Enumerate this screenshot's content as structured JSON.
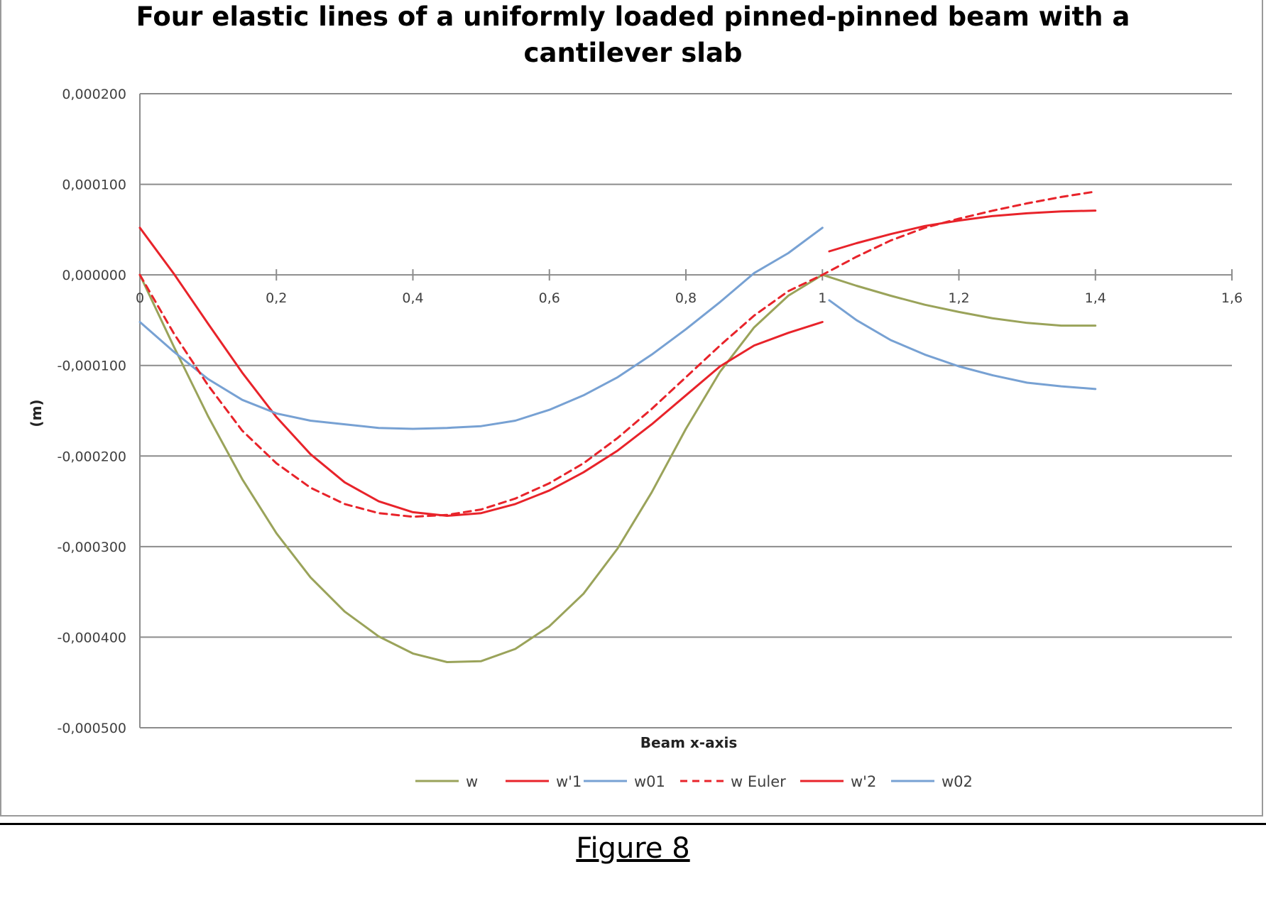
{
  "chart_data": {
    "type": "line",
    "title_lines": [
      "Four elastic lines of a uniformly loaded pinned-pinned beam with a",
      "cantilever slab"
    ],
    "xlabel": "Beam x-axis",
    "ylabel": "(m)",
    "xlim": [
      0,
      1.6
    ],
    "ylim": [
      -0.0005,
      0.0002
    ],
    "x_ticks": [
      0,
      0.2,
      0.4,
      0.6,
      0.8,
      1,
      1.2,
      1.4,
      1.6
    ],
    "x_tick_labels": [
      "0",
      "0,2",
      "0,4",
      "0,6",
      "0,8",
      "1",
      "1,2",
      "1,4",
      "1,6"
    ],
    "y_ticks": [
      0.0002,
      0.0001,
      0,
      -0.0001,
      -0.0002,
      -0.0003,
      -0.0004,
      -0.0005
    ],
    "y_tick_labels": [
      "0,000200",
      "0,000100",
      "0,000000",
      "-0,000100",
      "-0,000200",
      "-0,000300",
      "-0,000400",
      "-0,000500"
    ],
    "grid": true,
    "legend_position": "bottom",
    "series": [
      {
        "name": "w",
        "color": "#9aa35a",
        "dash": false,
        "points": [
          [
            0,
            0
          ],
          [
            0.05,
            -7.97e-05
          ],
          [
            0.1,
            -0.0001562
          ],
          [
            0.15,
            -0.0002256
          ],
          [
            0.2,
            -0.0002853
          ],
          [
            0.25,
            -0.000334
          ],
          [
            0.3,
            -0.0003717
          ],
          [
            0.35,
            -0.0003992
          ],
          [
            0.4,
            -0.000418
          ],
          [
            0.45,
            -0.0004275
          ],
          [
            0.5,
            -0.0004265
          ],
          [
            0.55,
            -0.000413
          ],
          [
            0.6,
            -0.000388
          ],
          [
            0.65,
            -0.000352
          ],
          [
            0.7,
            -0.000302
          ],
          [
            0.75,
            -0.00024
          ],
          [
            0.8,
            -0.00017
          ],
          [
            0.85,
            -0.000107
          ],
          [
            0.9,
            -5.8e-05
          ],
          [
            0.95,
            -2.3e-05
          ],
          [
            1.0,
            0
          ]
        ]
      },
      {
        "name": "w",
        "color": "#9aa35a",
        "dash": false,
        "points": [
          [
            1.0,
            0
          ],
          [
            1.05,
            -1.2e-05
          ],
          [
            1.1,
            -2.3e-05
          ],
          [
            1.15,
            -3.3e-05
          ],
          [
            1.2,
            -4.1e-05
          ],
          [
            1.25,
            -4.8e-05
          ],
          [
            1.3,
            -5.3e-05
          ],
          [
            1.35,
            -5.6e-05
          ],
          [
            1.4,
            -5.6e-05
          ]
        ]
      },
      {
        "name": "w'1",
        "color": "#e8232a",
        "dash": false,
        "points": [
          [
            0,
            5.2e-05
          ],
          [
            0.05,
            1e-06
          ],
          [
            0.1,
            -5.4e-05
          ],
          [
            0.15,
            -0.000108
          ],
          [
            0.2,
            -0.000157
          ],
          [
            0.25,
            -0.000198
          ],
          [
            0.3,
            -0.000229
          ],
          [
            0.35,
            -0.00025
          ],
          [
            0.4,
            -0.000262
          ],
          [
            0.45,
            -0.000266
          ],
          [
            0.5,
            -0.000263
          ],
          [
            0.55,
            -0.000253
          ],
          [
            0.6,
            -0.000238
          ],
          [
            0.65,
            -0.000218
          ],
          [
            0.7,
            -0.000194
          ],
          [
            0.75,
            -0.000165
          ],
          [
            0.8,
            -0.000133
          ],
          [
            0.85,
            -0.000101
          ],
          [
            0.9,
            -7.8e-05
          ],
          [
            0.95,
            -6.4e-05
          ],
          [
            1.0,
            -5.2e-05
          ]
        ]
      },
      {
        "name": "w01",
        "color": "#77a1d3",
        "dash": false,
        "points": [
          [
            0,
            -5.2e-05
          ],
          [
            0.05,
            -8.5e-05
          ],
          [
            0.1,
            -0.000115
          ],
          [
            0.15,
            -0.000138
          ],
          [
            0.2,
            -0.000153
          ],
          [
            0.25,
            -0.000161
          ],
          [
            0.3,
            -0.000165
          ],
          [
            0.35,
            -0.000169
          ],
          [
            0.4,
            -0.00017
          ],
          [
            0.45,
            -0.000169
          ],
          [
            0.5,
            -0.000167
          ],
          [
            0.55,
            -0.000161
          ],
          [
            0.6,
            -0.000149
          ],
          [
            0.65,
            -0.000133
          ],
          [
            0.7,
            -0.000113
          ],
          [
            0.75,
            -8.8e-05
          ],
          [
            0.8,
            -6e-05
          ],
          [
            0.85,
            -3e-05
          ],
          [
            0.9,
            2e-06
          ],
          [
            0.95,
            2.4e-05
          ],
          [
            1.0,
            5.2e-05
          ]
        ]
      },
      {
        "name": "w Euler",
        "color": "#e8232a",
        "dash": true,
        "points": [
          [
            0,
            0
          ],
          [
            0.05,
            -6.5e-05
          ],
          [
            0.1,
            -0.000122
          ],
          [
            0.15,
            -0.000172
          ],
          [
            0.2,
            -0.000208
          ],
          [
            0.25,
            -0.000235
          ],
          [
            0.3,
            -0.000253
          ],
          [
            0.35,
            -0.000263
          ],
          [
            0.4,
            -0.000267
          ],
          [
            0.45,
            -0.000265
          ],
          [
            0.5,
            -0.000259
          ],
          [
            0.55,
            -0.000247
          ],
          [
            0.6,
            -0.00023
          ],
          [
            0.65,
            -0.000208
          ],
          [
            0.7,
            -0.00018
          ],
          [
            0.75,
            -0.000148
          ],
          [
            0.8,
            -0.000113
          ],
          [
            0.85,
            -7.8e-05
          ],
          [
            0.9,
            -4.5e-05
          ],
          [
            0.95,
            -1.8e-05
          ],
          [
            1.0,
            0
          ],
          [
            1.05,
            2e-05
          ],
          [
            1.1,
            3.8e-05
          ],
          [
            1.15,
            5.2e-05
          ],
          [
            1.2,
            6.2e-05
          ],
          [
            1.25,
            7.1e-05
          ],
          [
            1.3,
            7.9e-05
          ],
          [
            1.35,
            8.6e-05
          ],
          [
            1.4,
            9.2e-05
          ]
        ]
      },
      {
        "name": "w'2",
        "color": "#e8232a",
        "dash": false,
        "points": [
          [
            1.01,
            2.6e-05
          ],
          [
            1.05,
            3.5e-05
          ],
          [
            1.1,
            4.5e-05
          ],
          [
            1.15,
            5.4e-05
          ],
          [
            1.2,
            6e-05
          ],
          [
            1.25,
            6.5e-05
          ],
          [
            1.3,
            6.8e-05
          ],
          [
            1.35,
            7e-05
          ],
          [
            1.4,
            7.1e-05
          ]
        ]
      },
      {
        "name": "w02",
        "color": "#77a1d3",
        "dash": false,
        "points": [
          [
            1.01,
            -2.8e-05
          ],
          [
            1.05,
            -5e-05
          ],
          [
            1.1,
            -7.2e-05
          ],
          [
            1.15,
            -8.8e-05
          ],
          [
            1.2,
            -0.000101
          ],
          [
            1.25,
            -0.000111
          ],
          [
            1.3,
            -0.000119
          ],
          [
            1.35,
            -0.000123
          ],
          [
            1.4,
            -0.000126
          ]
        ]
      }
    ],
    "legend": [
      {
        "name": "w",
        "color": "#9aa35a",
        "dash": false
      },
      {
        "name": "w'1",
        "color": "#e8232a",
        "dash": false
      },
      {
        "name": "w01",
        "color": "#77a1d3",
        "dash": false
      },
      {
        "name": "w Euler",
        "color": "#e8232a",
        "dash": true
      },
      {
        "name": "w'2",
        "color": "#e8232a",
        "dash": false
      },
      {
        "name": "w02",
        "color": "#77a1d3",
        "dash": false
      }
    ]
  },
  "caption": "Figure 8"
}
